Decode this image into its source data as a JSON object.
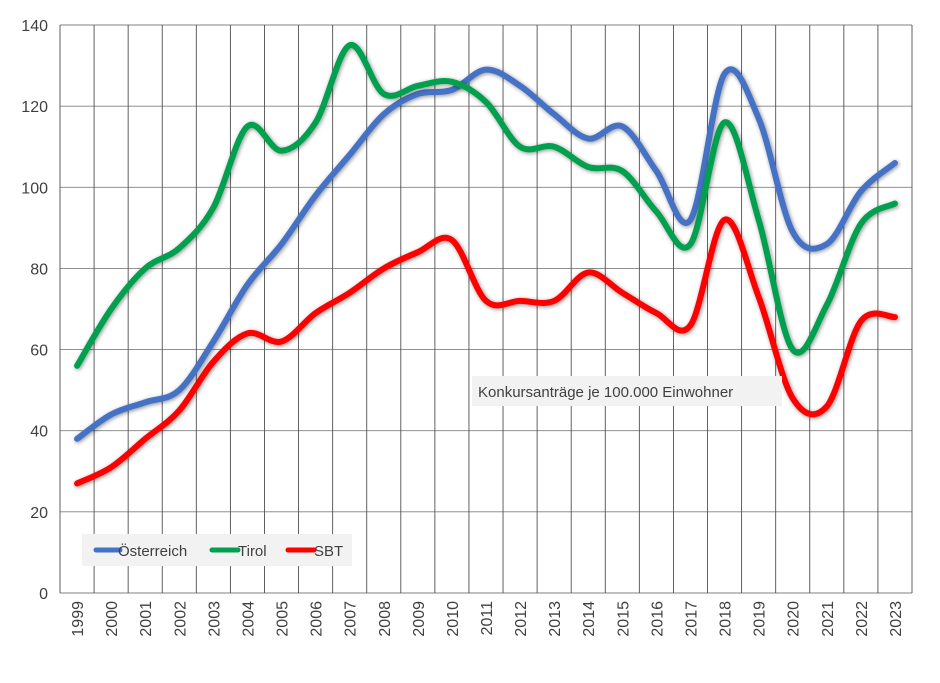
{
  "chart_data": {
    "type": "line",
    "title": "",
    "xlabel": "",
    "ylabel": "",
    "x": [
      "1999",
      "2000",
      "2001",
      "2002",
      "2003",
      "2004",
      "2005",
      "2006",
      "2007",
      "2008",
      "2009",
      "2010",
      "2011",
      "2012",
      "2013",
      "2014",
      "2015",
      "2016",
      "2017",
      "2018",
      "2019",
      "2020",
      "2021",
      "2022",
      "2023"
    ],
    "ylim": [
      0,
      140
    ],
    "yticks": [
      "0",
      "20",
      "40",
      "60",
      "80",
      "100",
      "120",
      "140"
    ],
    "grid": true,
    "legend_position": "bottom-left",
    "annotation": "Konkursanträge je 100.000 Einwohner",
    "series": [
      {
        "name": "Österreich",
        "color": "#4472C4",
        "values": [
          38,
          44,
          47,
          50,
          62,
          76,
          86,
          98,
          108,
          118,
          123,
          124,
          129,
          125,
          118,
          112,
          115,
          104,
          92,
          128,
          117,
          89,
          86,
          99,
          106
        ]
      },
      {
        "name": "Tirol",
        "color": "#00A050",
        "values": [
          56,
          70,
          80,
          85,
          95,
          115,
          109,
          116,
          135,
          123,
          125,
          126,
          121,
          110,
          110,
          105,
          104,
          94,
          86,
          116,
          92,
          60,
          71,
          91,
          96
        ]
      },
      {
        "name": "SBT",
        "color": "#FF0000",
        "values": [
          27,
          31,
          38,
          45,
          57,
          64,
          62,
          69,
          74,
          80,
          84,
          87,
          72,
          72,
          72,
          79,
          74,
          69,
          66,
          92,
          73,
          48,
          46,
          67,
          68
        ]
      }
    ]
  }
}
